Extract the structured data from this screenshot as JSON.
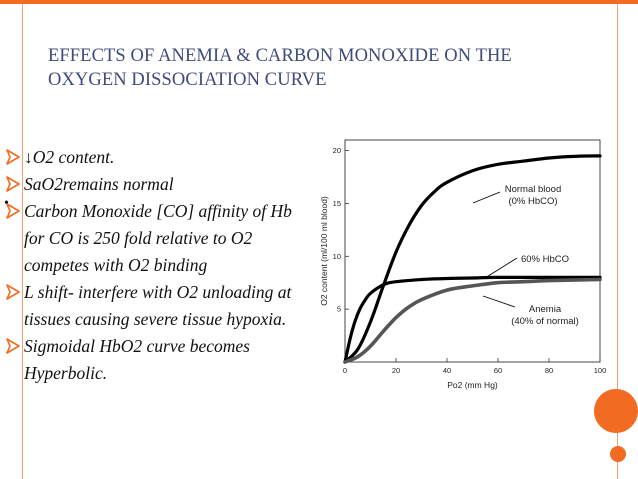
{
  "slide": {
    "title": "EFFECTS OF ANEMIA & CARBON MONOXIDE ON THE OXYGEN DISSOCIATION CURVE",
    "bullets": [
      "↓O2 content.",
      "SaO2remains normal",
      "Carbon Monoxide [CO] affinity of Hb for CO is 250 fold relative to O2 competes with O2 binding",
      " L shift- interfere with O2 unloading at tissues causing severe tissue hypoxia.",
      "Sigmoidal HbO2 curve becomes Hyperbolic."
    ],
    "stray_mark": "•",
    "bullet_icon": "hollow-arrow-bullet-icon",
    "colors": {
      "accent": "#f26b22",
      "title": "#3e4a7a",
      "bullet_icon": "#f26b22"
    }
  },
  "chart_data": {
    "type": "line",
    "title": "",
    "xlabel": "Po2 (mm Hg)",
    "ylabel": "O2 content (ml/100 ml blood)",
    "xlim": [
      0,
      100
    ],
    "ylim": [
      0,
      21
    ],
    "xticks": [
      0,
      20,
      40,
      60,
      80,
      100
    ],
    "yticks": [
      5,
      10,
      15,
      20
    ],
    "grid": false,
    "series": [
      {
        "name": "Normal blood (0% HbCO)",
        "color": "#000000",
        "x": [
          0,
          5,
          10,
          15,
          20,
          25,
          30,
          35,
          40,
          50,
          60,
          70,
          80,
          90,
          100
        ],
        "y": [
          0,
          1.2,
          3.8,
          7.2,
          10.4,
          12.9,
          14.8,
          16.1,
          17.0,
          18.1,
          18.7,
          19.0,
          19.3,
          19.45,
          19.5
        ]
      },
      {
        "name": "60% HbCO",
        "color": "#000000",
        "x": [
          0,
          2,
          4,
          6,
          8,
          10,
          15,
          20,
          30,
          40,
          50,
          60,
          80,
          100
        ],
        "y": [
          0,
          2.2,
          3.9,
          5.1,
          5.9,
          6.5,
          7.3,
          7.6,
          7.8,
          7.9,
          7.95,
          8.0,
          8.0,
          8.0
        ]
      },
      {
        "name": "Anemia (40% of normal)",
        "color": "#555555",
        "x": [
          0,
          5,
          10,
          15,
          20,
          25,
          30,
          40,
          50,
          60,
          70,
          80,
          100
        ],
        "y": [
          0,
          0.5,
          1.5,
          2.9,
          4.2,
          5.2,
          5.9,
          6.8,
          7.2,
          7.5,
          7.6,
          7.7,
          7.8
        ]
      }
    ],
    "annotations": [
      {
        "text_lines": [
          "Normal blood",
          "(0% HbCO)"
        ],
        "series": 0
      },
      {
        "text_lines": [
          "60% HbCO"
        ],
        "series": 1
      },
      {
        "text_lines": [
          "Anemia",
          "(40% of normal)"
        ],
        "series": 2
      }
    ]
  }
}
